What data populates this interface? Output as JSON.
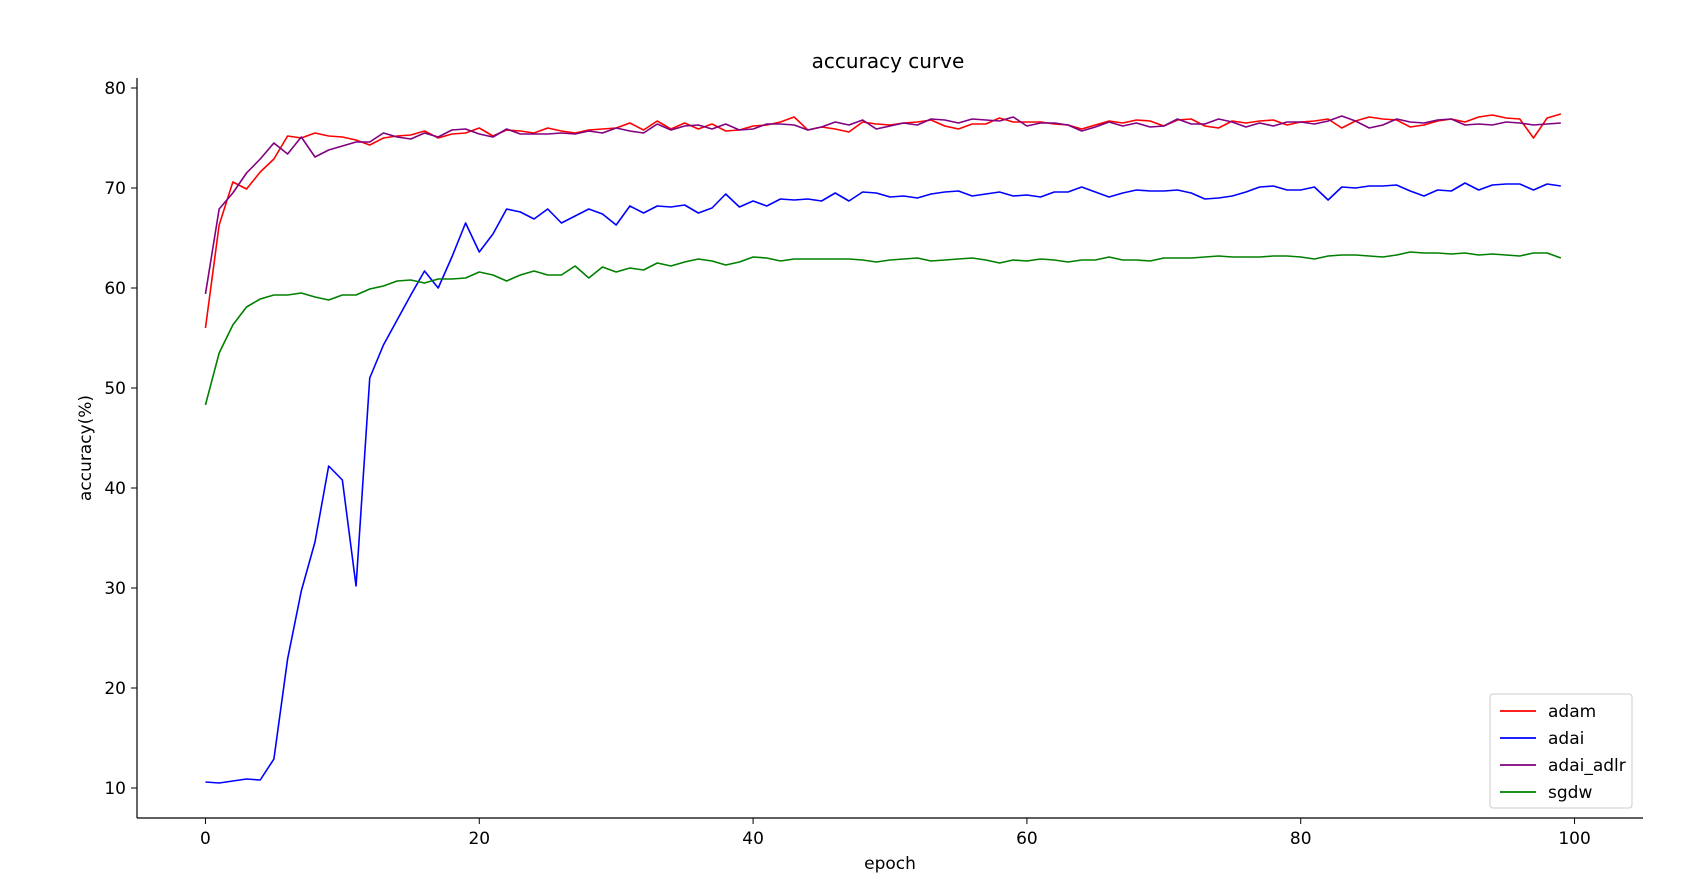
{
  "chart_data": {
    "type": "line",
    "title": "accuracy curve",
    "xlabel": "epoch",
    "ylabel": "accuracy(%)",
    "xlim": [
      -5,
      105
    ],
    "ylim": [
      7,
      81
    ],
    "xticks": [
      0,
      20,
      40,
      60,
      80,
      100
    ],
    "yticks": [
      10,
      20,
      30,
      40,
      50,
      60,
      70,
      80
    ],
    "grid": false,
    "legend_position": "lower-right",
    "series": [
      {
        "name": "adam",
        "color": "#ff0000",
        "values": [
          56.0,
          66.3,
          70.6,
          69.9,
          71.6,
          72.9,
          75.2,
          75.0,
          75.5,
          75.2,
          75.1,
          74.8,
          74.3,
          75.0,
          75.2,
          75.3,
          75.7,
          75.0,
          75.4,
          75.5,
          76.0,
          75.2,
          75.8,
          75.7,
          75.5,
          76.0,
          75.7,
          75.5,
          75.8,
          75.9,
          76.0,
          76.5,
          75.8,
          76.7,
          75.9,
          76.5,
          75.9,
          76.4,
          75.7,
          75.8,
          76.2,
          76.3,
          76.6,
          77.1,
          75.8,
          76.1,
          75.9,
          75.6,
          76.6,
          76.4,
          76.3,
          76.5,
          76.6,
          76.8,
          76.2,
          75.9,
          76.4,
          76.4,
          77.0,
          76.6,
          76.6,
          76.6,
          76.4,
          76.3,
          75.9,
          76.3,
          76.7,
          76.5,
          76.8,
          76.7,
          76.2,
          76.8,
          76.9,
          76.2,
          76.0,
          76.7,
          76.5,
          76.7,
          76.8,
          76.3,
          76.6,
          76.7,
          76.9,
          76.0,
          76.7,
          77.1,
          76.9,
          76.8,
          76.1,
          76.3,
          76.7,
          76.9,
          76.6,
          77.1,
          77.3,
          77.0,
          76.9,
          75.0,
          77.0,
          77.4
        ]
      },
      {
        "name": "adai",
        "color": "#0000ff",
        "values": [
          10.6,
          10.5,
          10.7,
          10.9,
          10.8,
          12.9,
          22.9,
          29.7,
          34.6,
          42.2,
          40.8,
          30.2,
          51.0,
          54.3,
          56.8,
          59.3,
          61.7,
          60.0,
          63.1,
          66.5,
          63.6,
          65.4,
          67.9,
          67.6,
          66.9,
          67.9,
          66.5,
          67.2,
          67.9,
          67.4,
          66.3,
          68.2,
          67.5,
          68.2,
          68.1,
          68.3,
          67.5,
          68.0,
          69.4,
          68.1,
          68.7,
          68.2,
          68.9,
          68.8,
          68.9,
          68.7,
          69.5,
          68.7,
          69.6,
          69.5,
          69.1,
          69.2,
          69.0,
          69.4,
          69.6,
          69.7,
          69.2,
          69.4,
          69.6,
          69.2,
          69.3,
          69.1,
          69.6,
          69.6,
          70.1,
          69.6,
          69.1,
          69.5,
          69.8,
          69.7,
          69.7,
          69.8,
          69.5,
          68.9,
          69.0,
          69.2,
          69.6,
          70.1,
          70.2,
          69.8,
          69.8,
          70.1,
          68.8,
          70.1,
          70.0,
          70.2,
          70.2,
          70.3,
          69.7,
          69.2,
          69.8,
          69.7,
          70.5,
          69.8,
          70.3,
          70.4,
          70.4,
          69.8,
          70.4,
          70.2
        ]
      },
      {
        "name": "adai_adlr",
        "color": "#800080",
        "values": [
          59.4,
          67.9,
          69.5,
          71.5,
          72.9,
          74.5,
          73.4,
          75.1,
          73.1,
          73.8,
          74.2,
          74.6,
          74.6,
          75.5,
          75.1,
          74.9,
          75.5,
          75.1,
          75.8,
          75.9,
          75.4,
          75.1,
          75.9,
          75.4,
          75.4,
          75.4,
          75.5,
          75.4,
          75.7,
          75.5,
          76.0,
          75.7,
          75.5,
          76.4,
          75.8,
          76.2,
          76.3,
          75.9,
          76.4,
          75.8,
          75.9,
          76.4,
          76.4,
          76.3,
          75.8,
          76.1,
          76.6,
          76.3,
          76.8,
          75.9,
          76.2,
          76.5,
          76.3,
          76.9,
          76.8,
          76.5,
          76.9,
          76.8,
          76.7,
          77.1,
          76.2,
          76.5,
          76.5,
          76.3,
          75.7,
          76.1,
          76.6,
          76.2,
          76.5,
          76.1,
          76.2,
          76.9,
          76.4,
          76.4,
          76.9,
          76.6,
          76.1,
          76.5,
          76.2,
          76.6,
          76.6,
          76.4,
          76.7,
          77.2,
          76.7,
          76.0,
          76.3,
          76.9,
          76.6,
          76.5,
          76.8,
          76.9,
          76.3,
          76.4,
          76.3,
          76.6,
          76.5,
          76.3,
          76.4,
          76.5
        ]
      },
      {
        "name": "sgdw",
        "color": "#008000",
        "values": [
          48.3,
          53.5,
          56.3,
          58.1,
          58.9,
          59.3,
          59.3,
          59.5,
          59.1,
          58.8,
          59.3,
          59.3,
          59.9,
          60.2,
          60.7,
          60.8,
          60.5,
          60.9,
          60.9,
          61.0,
          61.6,
          61.3,
          60.7,
          61.3,
          61.7,
          61.3,
          61.3,
          62.2,
          61.0,
          62.1,
          61.6,
          62.0,
          61.8,
          62.5,
          62.2,
          62.6,
          62.9,
          62.7,
          62.3,
          62.6,
          63.1,
          63.0,
          62.7,
          62.9,
          62.9,
          62.9,
          62.9,
          62.9,
          62.8,
          62.6,
          62.8,
          62.9,
          63.0,
          62.7,
          62.8,
          62.9,
          63.0,
          62.8,
          62.5,
          62.8,
          62.7,
          62.9,
          62.8,
          62.6,
          62.8,
          62.8,
          63.1,
          62.8,
          62.8,
          62.7,
          63.0,
          63.0,
          63.0,
          63.1,
          63.2,
          63.1,
          63.1,
          63.1,
          63.2,
          63.2,
          63.1,
          62.9,
          63.2,
          63.3,
          63.3,
          63.2,
          63.1,
          63.3,
          63.6,
          63.5,
          63.5,
          63.4,
          63.5,
          63.3,
          63.4,
          63.3,
          63.2,
          63.5,
          63.5,
          63.0
        ]
      }
    ]
  }
}
